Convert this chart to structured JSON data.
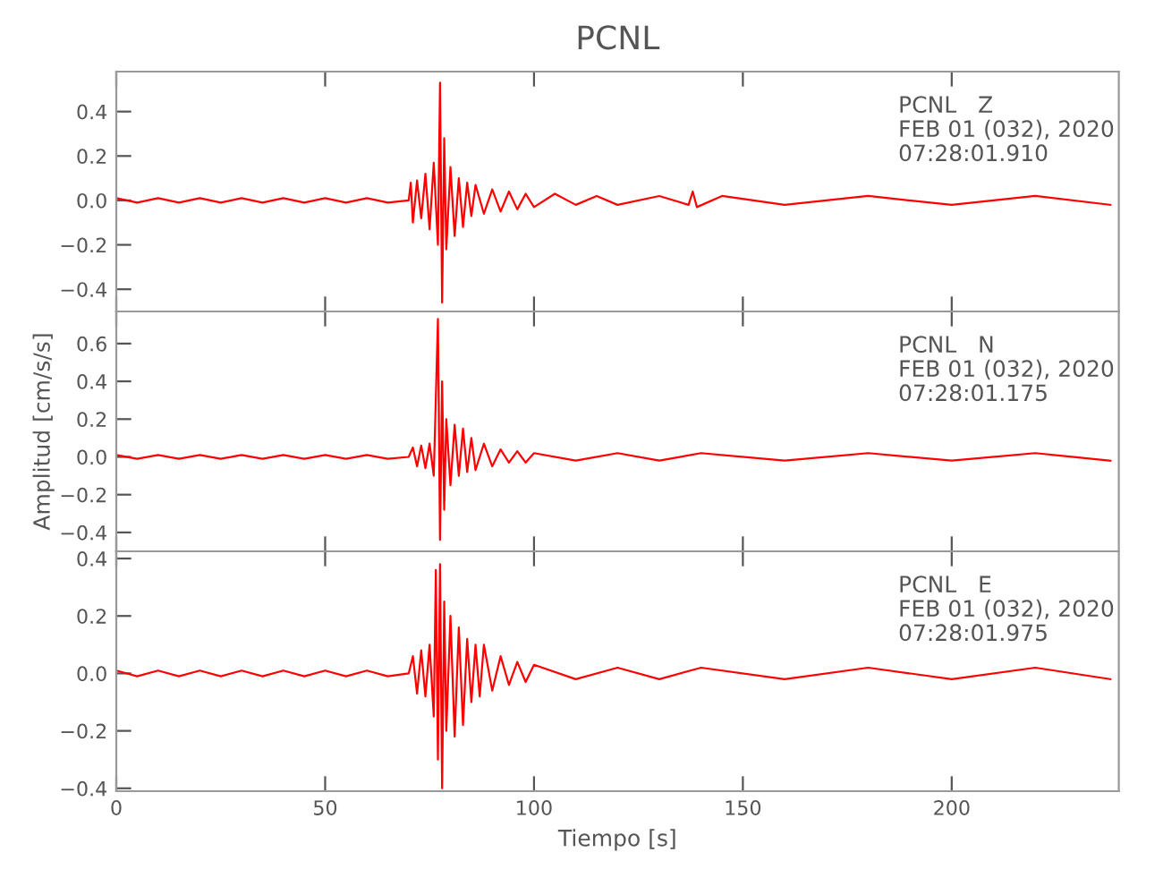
{
  "chart_data": [
    {
      "type": "line",
      "title": "PCNL",
      "annotations": [
        "PCNL   Z\nFEB 01 (032), 2020\n07:28:01.910"
      ],
      "xlim": [
        0,
        240
      ],
      "xticks": [
        0,
        50,
        100,
        150,
        200
      ],
      "ylim": [
        -0.5,
        0.58
      ],
      "yticks": [
        {
          "value": -0.4,
          "label": "−0.4"
        },
        {
          "value": -0.2,
          "label": "−0.2"
        },
        {
          "value": 0,
          "label": "0.0"
        },
        {
          "value": 0.2,
          "label": "0.2"
        },
        {
          "value": 0.4,
          "label": "0.4"
        }
      ],
      "tick_labels": "y",
      "grid": false,
      "legend": false,
      "line_style": "solid",
      "marker": "none",
      "series": [
        {
          "color": "#ff0000",
          "x": [
            0,
            5,
            10,
            15,
            20,
            25,
            30,
            35,
            40,
            45,
            50,
            55,
            60,
            65,
            70,
            70.5,
            71,
            72,
            73,
            74,
            75,
            76,
            77,
            77.5,
            78,
            78.5,
            79,
            80,
            81,
            82,
            83,
            84,
            85,
            86,
            88,
            90,
            92,
            94,
            96,
            98,
            100,
            105,
            110,
            115,
            120,
            130,
            137,
            138,
            139,
            145,
            160,
            180,
            200,
            220,
            238
          ],
          "values": [
            0.01,
            -0.01,
            0.01,
            -0.01,
            0.01,
            -0.01,
            0.01,
            -0.01,
            0.01,
            -0.01,
            0.01,
            -0.01,
            0.01,
            -0.01,
            0.0,
            0.08,
            -0.1,
            0.09,
            -0.08,
            0.12,
            -0.13,
            0.17,
            -0.2,
            0.53,
            -0.46,
            0.28,
            -0.22,
            0.15,
            -0.16,
            0.1,
            -0.12,
            0.08,
            -0.07,
            0.07,
            -0.06,
            0.05,
            -0.05,
            0.04,
            -0.04,
            0.03,
            -0.03,
            0.03,
            -0.02,
            0.02,
            -0.02,
            0.02,
            -0.02,
            0.04,
            -0.03,
            0.02,
            -0.02,
            0.02,
            -0.02,
            0.02,
            -0.02
          ]
        }
      ]
    },
    {
      "type": "line",
      "ylabel": "Amplitud [cm/s/s]",
      "annotations": [
        "PCNL   N\nFEB 01 (032), 2020\n07:28:01.175"
      ],
      "xlim": [
        0,
        240
      ],
      "xticks": [
        0,
        50,
        100,
        150,
        200
      ],
      "ylim": [
        -0.5,
        0.77
      ],
      "yticks": [
        {
          "value": -0.4,
          "label": "−0.4"
        },
        {
          "value": -0.2,
          "label": "−0.2"
        },
        {
          "value": 0,
          "label": "0.0"
        },
        {
          "value": 0.2,
          "label": "0.2"
        },
        {
          "value": 0.4,
          "label": "0.4"
        },
        {
          "value": 0.6,
          "label": "0.6"
        }
      ],
      "tick_labels": "y",
      "grid": false,
      "legend": false,
      "line_style": "solid",
      "marker": "none",
      "series": [
        {
          "color": "#ff0000",
          "x": [
            0,
            5,
            10,
            15,
            20,
            25,
            30,
            35,
            40,
            45,
            50,
            55,
            60,
            65,
            70,
            71,
            72,
            73,
            74,
            75,
            76,
            77,
            77.5,
            78,
            78.5,
            79,
            80,
            81,
            82,
            83,
            84,
            85,
            86,
            88,
            90,
            92,
            94,
            96,
            98,
            100,
            110,
            120,
            130,
            140,
            160,
            180,
            200,
            220,
            238
          ],
          "values": [
            0.01,
            -0.01,
            0.01,
            -0.01,
            0.01,
            -0.01,
            0.01,
            -0.01,
            0.01,
            -0.01,
            0.01,
            -0.01,
            0.01,
            -0.01,
            0.0,
            0.05,
            -0.05,
            0.06,
            -0.06,
            0.07,
            -0.1,
            0.73,
            -0.44,
            0.4,
            -0.28,
            0.2,
            -0.15,
            0.17,
            -0.1,
            0.15,
            -0.08,
            0.1,
            -0.07,
            0.07,
            -0.05,
            0.04,
            -0.03,
            0.03,
            -0.03,
            0.02,
            -0.02,
            0.02,
            -0.02,
            0.02,
            -0.02,
            0.02,
            -0.02,
            0.02,
            -0.02
          ]
        }
      ]
    },
    {
      "type": "line",
      "xlabel": "Tiempo [s]",
      "annotations": [
        "PCNL   E\nFEB 01 (032), 2020\n07:28:01.975"
      ],
      "xlim": [
        0,
        240
      ],
      "xticks": [
        0,
        50,
        100,
        150,
        200
      ],
      "ylim": [
        -0.41,
        0.425
      ],
      "yticks": [
        {
          "value": -0.4,
          "label": "−0.4"
        },
        {
          "value": -0.2,
          "label": "−0.2"
        },
        {
          "value": 0,
          "label": "0.0"
        },
        {
          "value": 0.2,
          "label": "0.2"
        },
        {
          "value": 0.4,
          "label": "0.4"
        }
      ],
      "grid": false,
      "legend": false,
      "line_style": "solid",
      "marker": "none",
      "series": [
        {
          "color": "#ff0000",
          "x": [
            0,
            5,
            10,
            15,
            20,
            25,
            30,
            35,
            40,
            45,
            50,
            55,
            60,
            65,
            70,
            71,
            72,
            73,
            74,
            75,
            76,
            76.5,
            77,
            77.5,
            78,
            78.5,
            79,
            80,
            81,
            82,
            83,
            84,
            85,
            86,
            87,
            88,
            90,
            92,
            94,
            96,
            98,
            100,
            110,
            120,
            130,
            140,
            160,
            180,
            200,
            220,
            238
          ],
          "values": [
            0.01,
            -0.01,
            0.01,
            -0.01,
            0.01,
            -0.01,
            0.01,
            -0.01,
            0.01,
            -0.01,
            0.01,
            -0.01,
            0.01,
            -0.01,
            0.0,
            0.06,
            -0.07,
            0.08,
            -0.08,
            0.1,
            -0.15,
            0.36,
            -0.3,
            0.38,
            -0.4,
            0.25,
            -0.2,
            0.2,
            -0.22,
            0.16,
            -0.18,
            0.12,
            -0.1,
            0.1,
            -0.08,
            0.1,
            -0.06,
            0.06,
            -0.04,
            0.04,
            -0.03,
            0.03,
            -0.02,
            0.02,
            -0.02,
            0.02,
            -0.02,
            0.02,
            -0.02,
            0.02,
            -0.02
          ]
        }
      ]
    }
  ]
}
